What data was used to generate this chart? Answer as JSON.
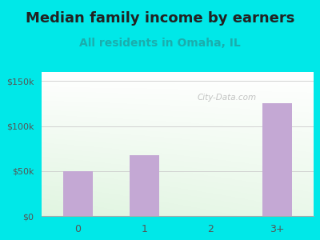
{
  "title": "Median family income by earners",
  "subtitle": "All residents in Omaha, IL",
  "categories": [
    "0",
    "1",
    "2",
    "3+"
  ],
  "values": [
    50000,
    68000,
    0,
    125000
  ],
  "bar_color": "#c4a8d4",
  "title_fontsize": 13,
  "subtitle_fontsize": 10,
  "subtitle_color": "#1aadad",
  "title_color": "#222222",
  "yticks": [
    0,
    50000,
    100000,
    150000
  ],
  "ytick_labels": [
    "$0",
    "$50k",
    "$100k",
    "$150k"
  ],
  "ylim": [
    0,
    160000
  ],
  "background_outer": "#00e8e8",
  "watermark": "City-Data.com",
  "tick_color": "#555555",
  "xlim": [
    -0.55,
    3.55
  ]
}
